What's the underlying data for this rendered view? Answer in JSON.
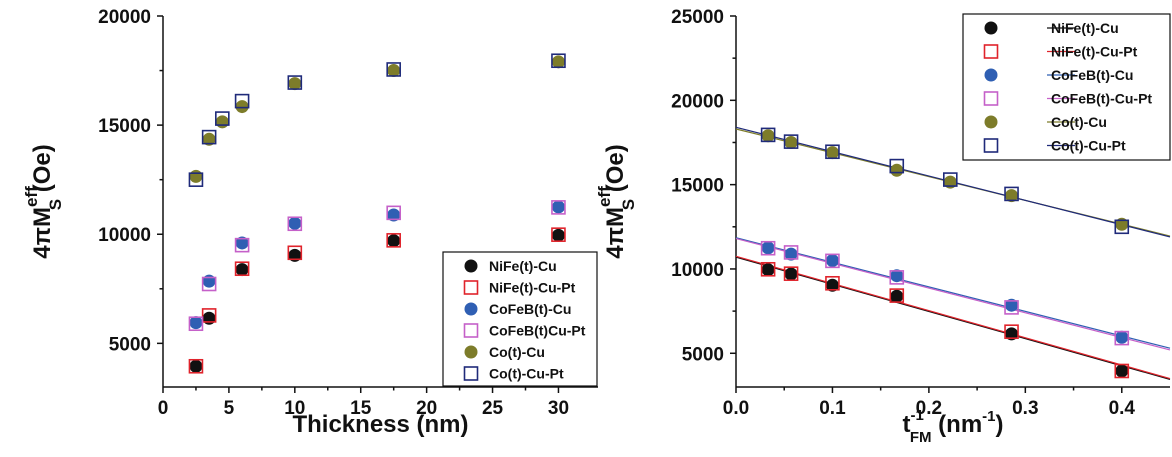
{
  "colors": {
    "black": "#111111",
    "red": "#e0232b",
    "blue": "#2f5fb3",
    "magenta": "#c560c9",
    "olive": "#7d7c2a",
    "navy": "#1f2a7a"
  },
  "chart_data": [
    {
      "type": "scatter",
      "xlabel": "Thickness (nm)",
      "ylabel": {
        "pre": "4πM",
        "sup": "eff",
        "sub": "S",
        "post": " (Oe)"
      },
      "xlim": [
        0,
        33
      ],
      "ylim": [
        3000,
        20000
      ],
      "xticks": [
        0,
        5,
        10,
        15,
        20,
        25,
        30
      ],
      "xtick_labels": [
        "0",
        "5",
        "10",
        "15",
        "20",
        "25",
        "30"
      ],
      "yticks": [
        5000,
        10000,
        15000,
        20000
      ],
      "ytick_labels": [
        "5000",
        "10000",
        "15000",
        "20000"
      ],
      "grid": false,
      "legend_position": "bottom-right",
      "series": [
        {
          "name": "NiFe(t)-Cu",
          "marker": "filled-circle",
          "color": "#111111",
          "x": [
            2.5,
            3.5,
            6,
            10,
            17.5,
            30
          ],
          "y": [
            3950,
            6150,
            8380,
            9030,
            9700,
            9950
          ]
        },
        {
          "name": "NiFe(t)-Cu-Pt",
          "marker": "open-square",
          "color": "#e0232b",
          "x": [
            2.5,
            3.5,
            6,
            10,
            17.5,
            30
          ],
          "y": [
            3950,
            6280,
            8420,
            9150,
            9720,
            9980
          ]
        },
        {
          "name": "CoFeB(t)-Cu",
          "marker": "filled-circle",
          "color": "#2f5fb3",
          "x": [
            2.5,
            3.5,
            6,
            10,
            17.5,
            30
          ],
          "y": [
            5950,
            7850,
            9600,
            10500,
            10880,
            11250
          ]
        },
        {
          "name": "CoFeB(t)Cu-Pt",
          "marker": "open-square",
          "color": "#c560c9",
          "x": [
            2.5,
            3.5,
            6,
            10,
            17.5,
            30
          ],
          "y": [
            5900,
            7720,
            9500,
            10480,
            10980,
            11230
          ]
        },
        {
          "name": "Co(t)-Cu",
          "marker": "filled-circle",
          "color": "#7d7c2a",
          "x": [
            2.5,
            3.5,
            4.5,
            6,
            10,
            17.5,
            30
          ],
          "y": [
            12650,
            14350,
            15150,
            15850,
            16900,
            17500,
            17900
          ]
        },
        {
          "name": "Co(t)-Cu-Pt",
          "marker": "open-square",
          "color": "#1f2a7a",
          "x": [
            2.5,
            3.5,
            4.5,
            6,
            10,
            17.5,
            30
          ],
          "y": [
            12500,
            14450,
            15300,
            16100,
            16950,
            17550,
            17950
          ]
        }
      ]
    },
    {
      "type": "scatter",
      "xlabel": {
        "pre": "t",
        "sup": "-1",
        "sub": "FM",
        "post": " (nm",
        "post_sup": "-1",
        "post_end": ")"
      },
      "ylabel": {
        "pre": "4πM",
        "sup": "eff",
        "sub": "S",
        "post": " (Oe)"
      },
      "xlim": [
        0,
        0.45
      ],
      "ylim": [
        3000,
        25000
      ],
      "xticks": [
        0,
        0.1,
        0.2,
        0.3,
        0.4
      ],
      "xtick_labels": [
        "0.0",
        "0.1",
        "0.2",
        "0.3",
        "0.4"
      ],
      "yticks": [
        5000,
        10000,
        15000,
        20000,
        25000
      ],
      "ytick_labels": [
        "5000",
        "10000",
        "15000",
        "20000",
        "25000"
      ],
      "grid": false,
      "legend_position": "top-right",
      "series": [
        {
          "name": "NiFe(t)-Cu",
          "marker": "filled-circle",
          "color": "#111111",
          "x": [
            0.0333,
            0.0571,
            0.1,
            0.1667,
            0.2857,
            0.4
          ],
          "y": [
            9950,
            9700,
            9030,
            8380,
            6150,
            3950
          ],
          "fit": [
            10700,
            3450
          ]
        },
        {
          "name": "NiFe(t)-Cu-Pt",
          "marker": "open-square",
          "color": "#e0232b",
          "x": [
            0.0333,
            0.0571,
            0.1,
            0.1667,
            0.2857,
            0.4
          ],
          "y": [
            9980,
            9720,
            9150,
            8420,
            6280,
            3950
          ],
          "fit": [
            10750,
            3500
          ]
        },
        {
          "name": "CoFeB(t)-Cu",
          "marker": "filled-circle",
          "color": "#2f5fb3",
          "x": [
            0.0333,
            0.0571,
            0.1,
            0.1667,
            0.2857,
            0.4
          ],
          "y": [
            11250,
            10880,
            10500,
            9600,
            7850,
            5950
          ],
          "fit": [
            11850,
            5300
          ]
        },
        {
          "name": "CoFeB(t)-Cu-Pt",
          "marker": "open-square",
          "color": "#c560c9",
          "x": [
            0.0333,
            0.0571,
            0.1,
            0.1667,
            0.2857,
            0.4
          ],
          "y": [
            11230,
            10980,
            10480,
            9500,
            7720,
            5900
          ],
          "fit": [
            11800,
            5200
          ]
        },
        {
          "name": "Co(t)-Cu",
          "marker": "filled-circle",
          "color": "#7d7c2a",
          "x": [
            0.0333,
            0.0571,
            0.1,
            0.1667,
            0.2222,
            0.2857,
            0.4
          ],
          "y": [
            17900,
            17500,
            16900,
            15850,
            15150,
            14350,
            12650
          ],
          "fit": [
            18300,
            11950
          ]
        },
        {
          "name": "Co(t)-Cu-Pt",
          "marker": "open-square",
          "color": "#1f2a7a",
          "x": [
            0.0333,
            0.0571,
            0.1,
            0.1667,
            0.2222,
            0.2857,
            0.4
          ],
          "y": [
            17950,
            17550,
            16950,
            16100,
            15300,
            14450,
            12500
          ],
          "fit": [
            18400,
            11900
          ]
        }
      ]
    }
  ]
}
